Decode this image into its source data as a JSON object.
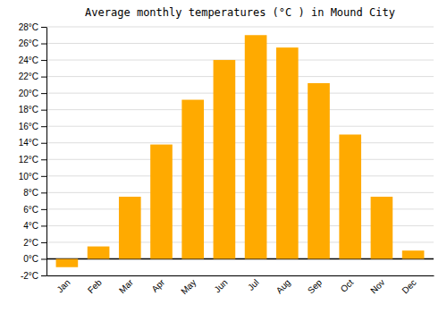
{
  "chart_data": {
    "type": "bar",
    "title": "Average monthly temperatures (°C ) in Mound City",
    "categories": [
      "Jan",
      "Feb",
      "Mar",
      "Apr",
      "May",
      "Jun",
      "Jul",
      "Aug",
      "Sep",
      "Oct",
      "Nov",
      "Dec"
    ],
    "values": [
      -1.0,
      1.5,
      7.5,
      13.8,
      19.2,
      24.0,
      27.0,
      25.5,
      21.2,
      15.0,
      7.5,
      1.0
    ],
    "color": "#FFAA00",
    "ylim": [
      -2,
      28
    ],
    "yticks": [
      {
        "value": -2,
        "label": "-2°C"
      },
      {
        "value": 0,
        "label": "0°C"
      },
      {
        "value": 2,
        "label": "2°C"
      },
      {
        "value": 4,
        "label": "4°C"
      },
      {
        "value": 6,
        "label": "6°C"
      },
      {
        "value": 8,
        "label": "8°C"
      },
      {
        "value": 10,
        "label": "10°C"
      },
      {
        "value": 12,
        "label": "12°C"
      },
      {
        "value": 14,
        "label": "14°C"
      },
      {
        "value": 16,
        "label": "16°C"
      },
      {
        "value": 18,
        "label": "18°C"
      },
      {
        "value": 20,
        "label": "20°C"
      },
      {
        "value": 22,
        "label": "22°C"
      },
      {
        "value": 24,
        "label": "24°C"
      },
      {
        "value": 26,
        "label": "26°C"
      },
      {
        "value": 28,
        "label": "28°C"
      }
    ],
    "grid": true
  }
}
